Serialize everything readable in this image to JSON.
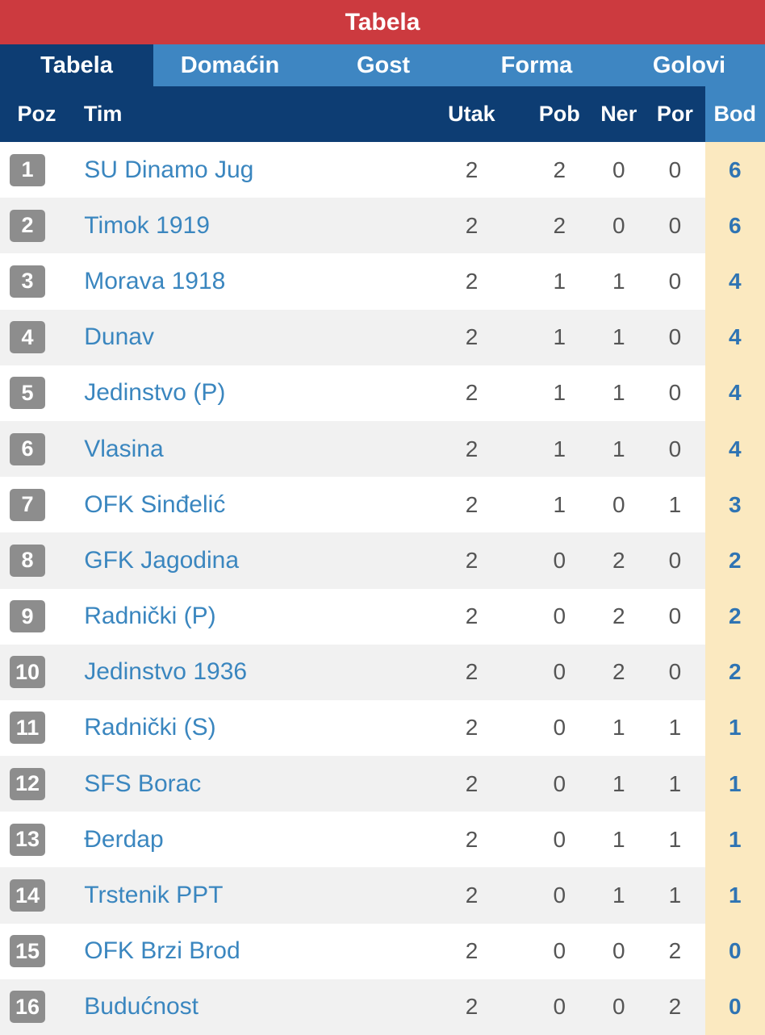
{
  "title": "Tabela",
  "tabs": [
    "Tabela",
    "Domaćin",
    "Gost",
    "Forma",
    "Golovi"
  ],
  "headers": {
    "poz": "Poz",
    "tim": "Tim",
    "utak": "Utak",
    "pob": "Pob",
    "ner": "Ner",
    "por": "Por",
    "bod": "Bod"
  },
  "colors": {
    "title_bg": "#cc3a3f",
    "tab_bg": "#3e86c2",
    "header_bg": "#0d3d73",
    "bod_bg": "#fbe9c0",
    "link": "#3a86bf",
    "badge": "#8d8d8d"
  },
  "rows": [
    {
      "poz": "1",
      "tim": "SU Dinamo Jug",
      "utak": "2",
      "pob": "2",
      "ner": "0",
      "por": "0",
      "bod": "6"
    },
    {
      "poz": "2",
      "tim": "Timok 1919",
      "utak": "2",
      "pob": "2",
      "ner": "0",
      "por": "0",
      "bod": "6"
    },
    {
      "poz": "3",
      "tim": "Morava 1918",
      "utak": "2",
      "pob": "1",
      "ner": "1",
      "por": "0",
      "bod": "4"
    },
    {
      "poz": "4",
      "tim": "Dunav",
      "utak": "2",
      "pob": "1",
      "ner": "1",
      "por": "0",
      "bod": "4"
    },
    {
      "poz": "5",
      "tim": "Jedinstvo (P)",
      "utak": "2",
      "pob": "1",
      "ner": "1",
      "por": "0",
      "bod": "4"
    },
    {
      "poz": "6",
      "tim": "Vlasina",
      "utak": "2",
      "pob": "1",
      "ner": "1",
      "por": "0",
      "bod": "4"
    },
    {
      "poz": "7",
      "tim": "OFK Sinđelić",
      "utak": "2",
      "pob": "1",
      "ner": "0",
      "por": "1",
      "bod": "3"
    },
    {
      "poz": "8",
      "tim": "GFK Jagodina",
      "utak": "2",
      "pob": "0",
      "ner": "2",
      "por": "0",
      "bod": "2"
    },
    {
      "poz": "9",
      "tim": "Radnički (P)",
      "utak": "2",
      "pob": "0",
      "ner": "2",
      "por": "0",
      "bod": "2"
    },
    {
      "poz": "10",
      "tim": "Jedinstvo 1936",
      "utak": "2",
      "pob": "0",
      "ner": "2",
      "por": "0",
      "bod": "2"
    },
    {
      "poz": "11",
      "tim": "Radnički (S)",
      "utak": "2",
      "pob": "0",
      "ner": "1",
      "por": "1",
      "bod": "1"
    },
    {
      "poz": "12",
      "tim": "SFS Borac",
      "utak": "2",
      "pob": "0",
      "ner": "1",
      "por": "1",
      "bod": "1"
    },
    {
      "poz": "13",
      "tim": "Đerdap",
      "utak": "2",
      "pob": "0",
      "ner": "1",
      "por": "1",
      "bod": "1"
    },
    {
      "poz": "14",
      "tim": "Trstenik PPT",
      "utak": "2",
      "pob": "0",
      "ner": "1",
      "por": "1",
      "bod": "1"
    },
    {
      "poz": "15",
      "tim": "OFK Brzi Brod",
      "utak": "2",
      "pob": "0",
      "ner": "0",
      "por": "2",
      "bod": "0"
    },
    {
      "poz": "16",
      "tim": "Budućnost",
      "utak": "2",
      "pob": "0",
      "ner": "0",
      "por": "2",
      "bod": "0"
    }
  ]
}
